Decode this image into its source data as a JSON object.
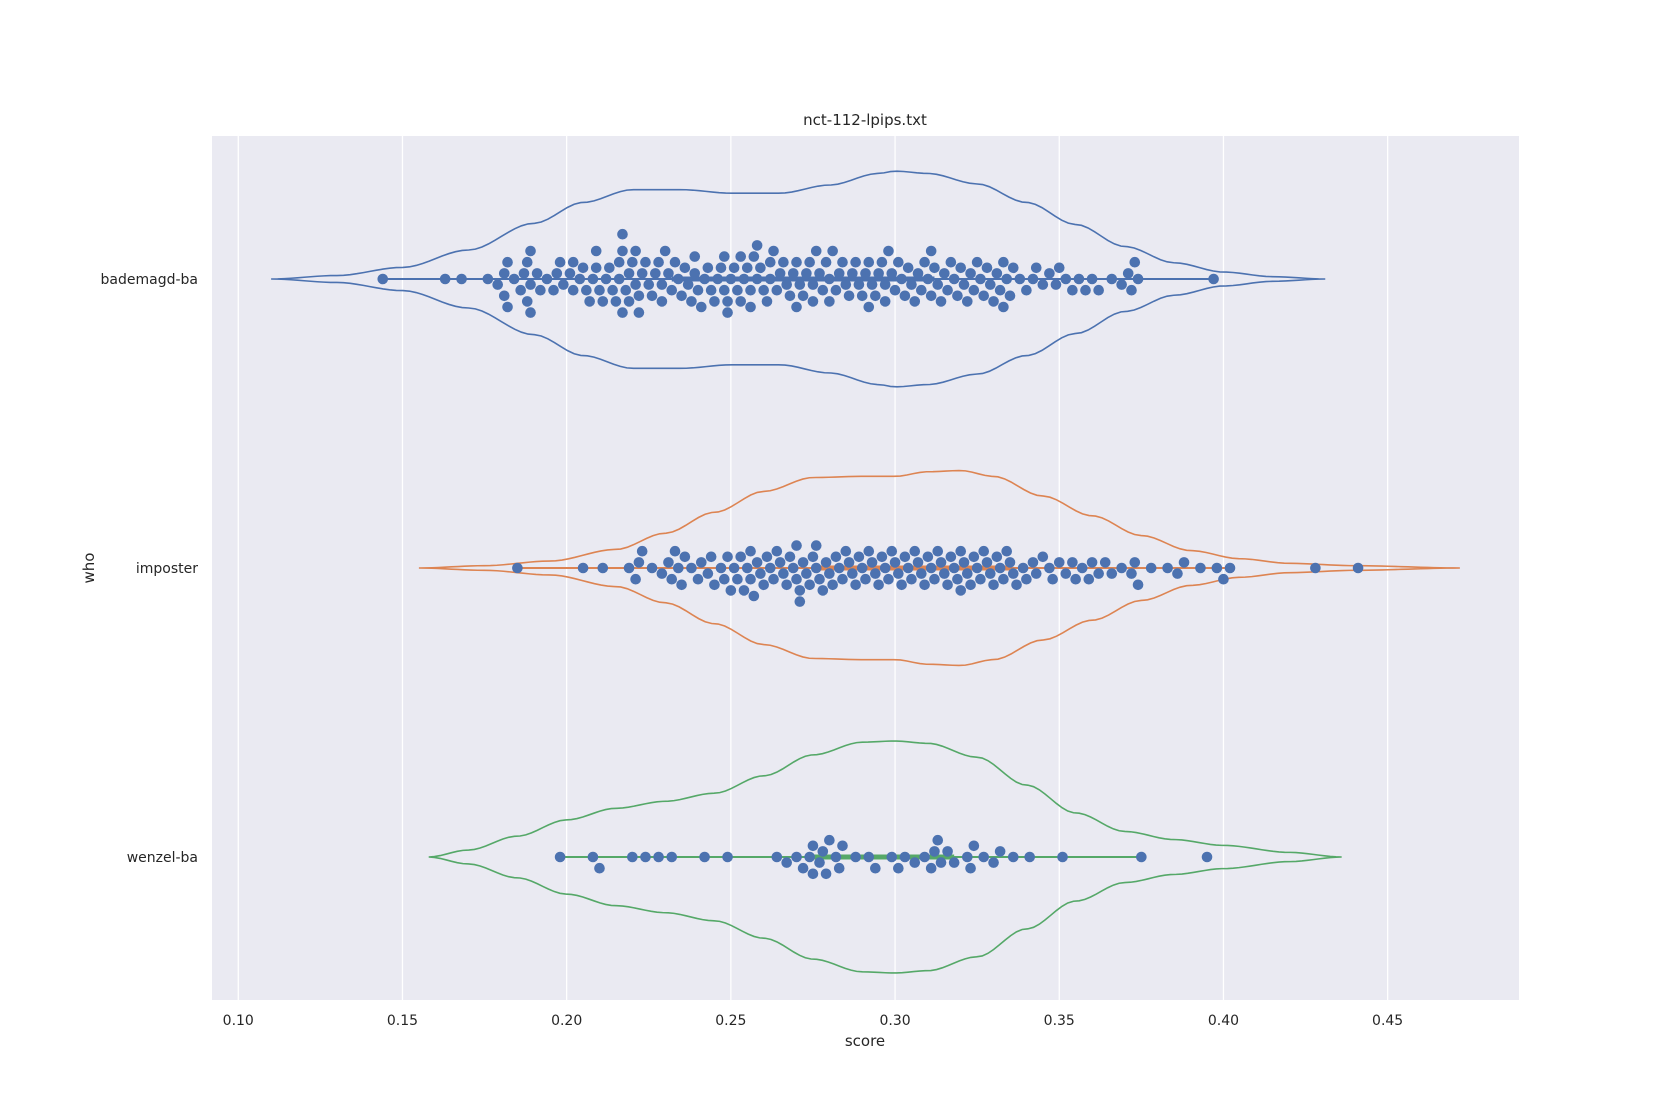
{
  "chart_data": {
    "type": "violin-swarm",
    "title": "nct-112-lpips.txt",
    "xlabel": "score",
    "ylabel": "who",
    "xlim": [
      0.092,
      0.49
    ],
    "x_ticks": [
      "0.10",
      "0.15",
      "0.20",
      "0.25",
      "0.30",
      "0.35",
      "0.40",
      "0.45"
    ],
    "x_tick_values": [
      0.1,
      0.15,
      0.2,
      0.25,
      0.3,
      0.35,
      0.4,
      0.45
    ],
    "categories": [
      "bademagd-ba",
      "imposter",
      "wenzel-ba"
    ],
    "grid": true,
    "colors": {
      "background": "#eaeaf2",
      "grid": "#ffffff",
      "points": "#4c72b0",
      "violins": [
        "#4c72b0",
        "#dd8452",
        "#55a868"
      ]
    },
    "series": [
      {
        "name": "bademagd-ba",
        "violin_range": [
          0.11,
          0.431
        ],
        "median": 0.285,
        "iqr": [
          0.232,
          0.312
        ],
        "whiskers": [
          0.144,
          0.397
        ],
        "density": [
          [
            0.11,
            0.0
          ],
          [
            0.13,
            0.03
          ],
          [
            0.15,
            0.1
          ],
          [
            0.17,
            0.25
          ],
          [
            0.19,
            0.48
          ],
          [
            0.205,
            0.66
          ],
          [
            0.22,
            0.77
          ],
          [
            0.235,
            0.77
          ],
          [
            0.25,
            0.74
          ],
          [
            0.265,
            0.74
          ],
          [
            0.28,
            0.81
          ],
          [
            0.295,
            0.91
          ],
          [
            0.3,
            0.93
          ],
          [
            0.31,
            0.91
          ],
          [
            0.325,
            0.82
          ],
          [
            0.34,
            0.66
          ],
          [
            0.355,
            0.47
          ],
          [
            0.37,
            0.28
          ],
          [
            0.385,
            0.14
          ],
          [
            0.4,
            0.06
          ],
          [
            0.415,
            0.02
          ],
          [
            0.431,
            0.0
          ]
        ],
        "values": [
          0.144,
          0.163,
          0.168,
          0.176,
          0.179,
          0.181,
          0.181,
          0.182,
          0.182,
          0.184,
          0.186,
          0.187,
          0.188,
          0.188,
          0.189,
          0.189,
          0.189,
          0.191,
          0.192,
          0.194,
          0.196,
          0.197,
          0.198,
          0.199,
          0.201,
          0.202,
          0.202,
          0.204,
          0.205,
          0.206,
          0.207,
          0.208,
          0.209,
          0.209,
          0.21,
          0.211,
          0.212,
          0.213,
          0.214,
          0.215,
          0.216,
          0.216,
          0.217,
          0.217,
          0.217,
          0.218,
          0.219,
          0.219,
          0.22,
          0.221,
          0.221,
          0.222,
          0.222,
          0.223,
          0.224,
          0.225,
          0.226,
          0.227,
          0.228,
          0.229,
          0.229,
          0.23,
          0.231,
          0.232,
          0.233,
          0.234,
          0.235,
          0.236,
          0.237,
          0.238,
          0.239,
          0.239,
          0.24,
          0.241,
          0.242,
          0.243,
          0.244,
          0.245,
          0.246,
          0.247,
          0.248,
          0.248,
          0.249,
          0.249,
          0.25,
          0.251,
          0.252,
          0.253,
          0.253,
          0.254,
          0.255,
          0.256,
          0.256,
          0.257,
          0.258,
          0.258,
          0.259,
          0.26,
          0.261,
          0.262,
          0.262,
          0.263,
          0.264,
          0.265,
          0.266,
          0.267,
          0.268,
          0.269,
          0.27,
          0.27,
          0.271,
          0.272,
          0.273,
          0.274,
          0.275,
          0.275,
          0.276,
          0.277,
          0.278,
          0.279,
          0.28,
          0.28,
          0.281,
          0.282,
          0.283,
          0.284,
          0.285,
          0.286,
          0.287,
          0.288,
          0.289,
          0.29,
          0.291,
          0.292,
          0.292,
          0.293,
          0.294,
          0.295,
          0.296,
          0.297,
          0.297,
          0.298,
          0.299,
          0.3,
          0.301,
          0.302,
          0.303,
          0.304,
          0.305,
          0.306,
          0.307,
          0.308,
          0.309,
          0.31,
          0.311,
          0.311,
          0.312,
          0.313,
          0.314,
          0.315,
          0.316,
          0.317,
          0.318,
          0.319,
          0.32,
          0.321,
          0.322,
          0.323,
          0.324,
          0.325,
          0.326,
          0.327,
          0.328,
          0.329,
          0.33,
          0.331,
          0.332,
          0.333,
          0.333,
          0.334,
          0.335,
          0.336,
          0.338,
          0.34,
          0.342,
          0.343,
          0.345,
          0.347,
          0.349,
          0.35,
          0.352,
          0.354,
          0.356,
          0.358,
          0.36,
          0.362,
          0.366,
          0.369,
          0.371,
          0.372,
          0.373,
          0.374,
          0.397
        ]
      },
      {
        "name": "imposter",
        "violin_range": [
          0.155,
          0.472
        ],
        "median": 0.3,
        "iqr": [
          0.275,
          0.335
        ],
        "whiskers": [
          0.185,
          0.402
        ],
        "density": [
          [
            0.155,
            0.0
          ],
          [
            0.175,
            0.02
          ],
          [
            0.195,
            0.06
          ],
          [
            0.215,
            0.16
          ],
          [
            0.23,
            0.3
          ],
          [
            0.245,
            0.48
          ],
          [
            0.26,
            0.66
          ],
          [
            0.275,
            0.78
          ],
          [
            0.29,
            0.79
          ],
          [
            0.3,
            0.79
          ],
          [
            0.31,
            0.83
          ],
          [
            0.32,
            0.84
          ],
          [
            0.33,
            0.79
          ],
          [
            0.345,
            0.62
          ],
          [
            0.36,
            0.45
          ],
          [
            0.375,
            0.28
          ],
          [
            0.39,
            0.15
          ],
          [
            0.405,
            0.08
          ],
          [
            0.42,
            0.04
          ],
          [
            0.44,
            0.02
          ],
          [
            0.472,
            0.0
          ]
        ],
        "values": [
          0.185,
          0.205,
          0.211,
          0.219,
          0.221,
          0.222,
          0.223,
          0.226,
          0.229,
          0.231,
          0.232,
          0.233,
          0.234,
          0.235,
          0.236,
          0.238,
          0.24,
          0.241,
          0.243,
          0.244,
          0.245,
          0.247,
          0.248,
          0.249,
          0.25,
          0.251,
          0.252,
          0.253,
          0.254,
          0.255,
          0.256,
          0.256,
          0.257,
          0.258,
          0.259,
          0.26,
          0.261,
          0.262,
          0.263,
          0.264,
          0.265,
          0.266,
          0.267,
          0.268,
          0.269,
          0.27,
          0.27,
          0.271,
          0.271,
          0.272,
          0.273,
          0.274,
          0.275,
          0.276,
          0.276,
          0.277,
          0.278,
          0.279,
          0.28,
          0.281,
          0.282,
          0.283,
          0.284,
          0.285,
          0.286,
          0.287,
          0.288,
          0.289,
          0.29,
          0.291,
          0.292,
          0.293,
          0.294,
          0.295,
          0.296,
          0.297,
          0.298,
          0.299,
          0.3,
          0.301,
          0.302,
          0.303,
          0.304,
          0.305,
          0.306,
          0.307,
          0.308,
          0.309,
          0.31,
          0.311,
          0.312,
          0.313,
          0.314,
          0.315,
          0.316,
          0.317,
          0.318,
          0.319,
          0.32,
          0.32,
          0.321,
          0.322,
          0.323,
          0.324,
          0.325,
          0.326,
          0.327,
          0.328,
          0.329,
          0.33,
          0.331,
          0.332,
          0.333,
          0.334,
          0.335,
          0.336,
          0.337,
          0.339,
          0.34,
          0.342,
          0.343,
          0.345,
          0.347,
          0.348,
          0.35,
          0.352,
          0.354,
          0.355,
          0.357,
          0.359,
          0.36,
          0.362,
          0.364,
          0.366,
          0.369,
          0.372,
          0.373,
          0.374,
          0.378,
          0.383,
          0.386,
          0.388,
          0.393,
          0.398,
          0.4,
          0.402,
          0.428,
          0.441
        ]
      },
      {
        "name": "wenzel-ba",
        "violin_range": [
          0.158,
          0.436
        ],
        "median": 0.3,
        "iqr": [
          0.275,
          0.318
        ],
        "whiskers": [
          0.198,
          0.375
        ],
        "density": [
          [
            0.158,
            0.0
          ],
          [
            0.17,
            0.06
          ],
          [
            0.185,
            0.18
          ],
          [
            0.2,
            0.32
          ],
          [
            0.215,
            0.42
          ],
          [
            0.23,
            0.48
          ],
          [
            0.245,
            0.55
          ],
          [
            0.26,
            0.7
          ],
          [
            0.275,
            0.88
          ],
          [
            0.29,
            0.99
          ],
          [
            0.3,
            1.0
          ],
          [
            0.31,
            0.98
          ],
          [
            0.325,
            0.86
          ],
          [
            0.34,
            0.62
          ],
          [
            0.355,
            0.38
          ],
          [
            0.37,
            0.22
          ],
          [
            0.385,
            0.15
          ],
          [
            0.4,
            0.1
          ],
          [
            0.42,
            0.04
          ],
          [
            0.436,
            0.0
          ]
        ],
        "values": [
          0.198,
          0.208,
          0.21,
          0.22,
          0.224,
          0.228,
          0.232,
          0.242,
          0.249,
          0.264,
          0.267,
          0.27,
          0.272,
          0.274,
          0.275,
          0.275,
          0.277,
          0.278,
          0.279,
          0.28,
          0.282,
          0.283,
          0.284,
          0.288,
          0.292,
          0.294,
          0.299,
          0.301,
          0.303,
          0.306,
          0.309,
          0.311,
          0.312,
          0.313,
          0.314,
          0.316,
          0.318,
          0.322,
          0.323,
          0.324,
          0.327,
          0.33,
          0.332,
          0.336,
          0.341,
          0.351,
          0.375,
          0.395
        ]
      }
    ]
  }
}
